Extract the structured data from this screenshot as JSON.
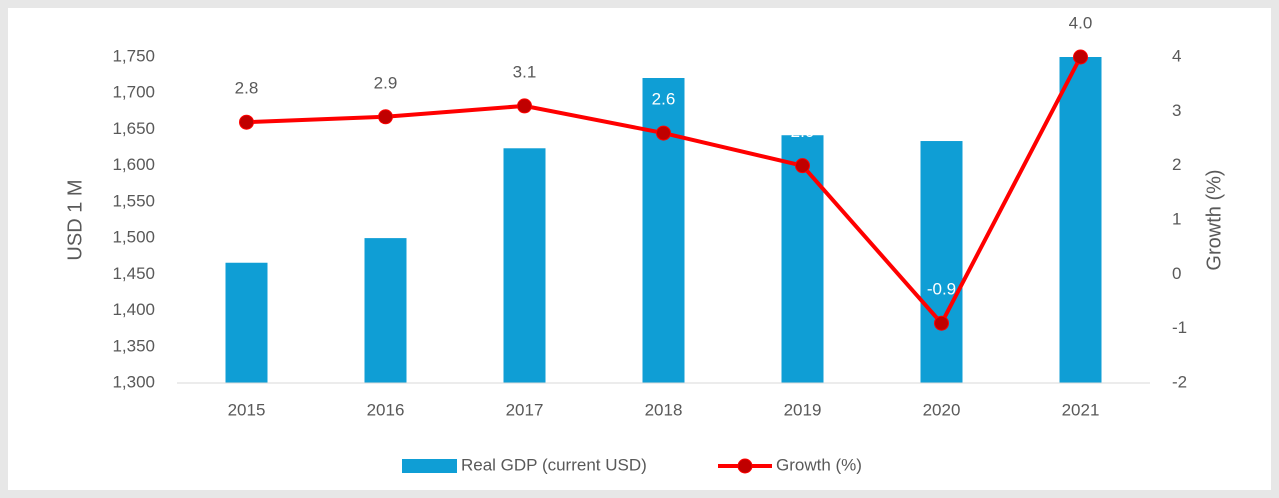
{
  "chart_data": {
    "type": "bar-line",
    "categories": [
      "2015",
      "2016",
      "2017",
      "2018",
      "2019",
      "2020",
      "2021"
    ],
    "series": [
      {
        "name": "Real GDP (current USD)",
        "color": "#0f9ed5",
        "values": [
          1466,
          1500,
          1624,
          1721,
          1642,
          1634,
          1750
        ]
      },
      {
        "name": "Growth (%)",
        "color": "#ff0000",
        "axis": "y2",
        "values": [
          2.8,
          2.9,
          3.1,
          2.6,
          2.0,
          -0.9,
          4.0
        ],
        "value_labels": [
          "2.8",
          "2.9",
          "3.1",
          "2.6",
          "2.0",
          "-0.9",
          "4.0"
        ]
      }
    ],
    "ylabel": "USD 1 M",
    "y2label": "Growth (%)",
    "ylim": [
      1300,
      1750
    ],
    "yticks": [
      {
        "value": 1300,
        "label": "1,300"
      },
      {
        "value": 1350,
        "label": "1,350"
      },
      {
        "value": 1400,
        "label": "1,400"
      },
      {
        "value": 1450,
        "label": "1,450"
      },
      {
        "value": 1500,
        "label": "1,500"
      },
      {
        "value": 1550,
        "label": "1,550"
      },
      {
        "value": 1600,
        "label": "1,600"
      },
      {
        "value": 1650,
        "label": "1,650"
      },
      {
        "value": 1700,
        "label": "1,700"
      },
      {
        "value": 1750,
        "label": "1,750"
      }
    ],
    "y2lim": [
      -2,
      4
    ],
    "y2ticks": [
      -2,
      -1,
      0,
      1,
      2,
      3,
      4
    ],
    "legend": "bottom"
  }
}
